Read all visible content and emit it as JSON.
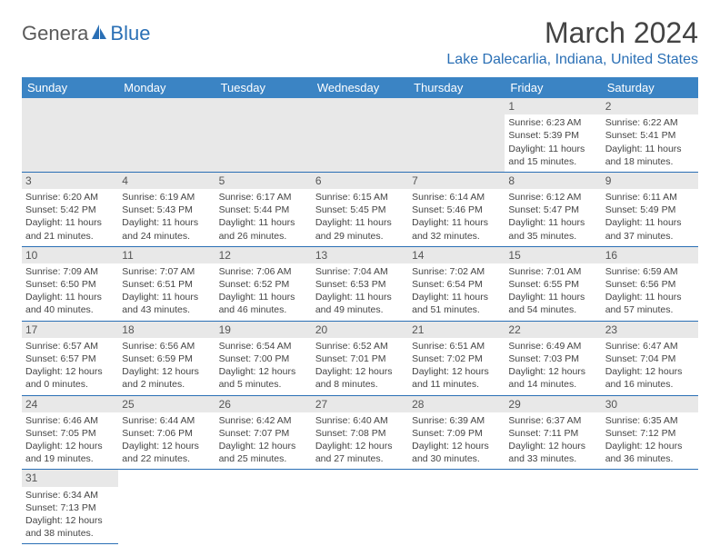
{
  "logo": {
    "text1": "Genera",
    "text2": "Blue"
  },
  "title": "March 2024",
  "location": "Lake Dalecarlia, Indiana, United States",
  "colors": {
    "header_bg": "#3b84c4",
    "accent": "#2a6fb5",
    "daynum_bg": "#e8e8e8",
    "text": "#444444"
  },
  "weekdays": [
    "Sunday",
    "Monday",
    "Tuesday",
    "Wednesday",
    "Thursday",
    "Friday",
    "Saturday"
  ],
  "first_weekday_index": 5,
  "days": [
    {
      "n": 1,
      "sunrise": "6:23 AM",
      "sunset": "5:39 PM",
      "daylight": "11 hours and 15 minutes."
    },
    {
      "n": 2,
      "sunrise": "6:22 AM",
      "sunset": "5:41 PM",
      "daylight": "11 hours and 18 minutes."
    },
    {
      "n": 3,
      "sunrise": "6:20 AM",
      "sunset": "5:42 PM",
      "daylight": "11 hours and 21 minutes."
    },
    {
      "n": 4,
      "sunrise": "6:19 AM",
      "sunset": "5:43 PM",
      "daylight": "11 hours and 24 minutes."
    },
    {
      "n": 5,
      "sunrise": "6:17 AM",
      "sunset": "5:44 PM",
      "daylight": "11 hours and 26 minutes."
    },
    {
      "n": 6,
      "sunrise": "6:15 AM",
      "sunset": "5:45 PM",
      "daylight": "11 hours and 29 minutes."
    },
    {
      "n": 7,
      "sunrise": "6:14 AM",
      "sunset": "5:46 PM",
      "daylight": "11 hours and 32 minutes."
    },
    {
      "n": 8,
      "sunrise": "6:12 AM",
      "sunset": "5:47 PM",
      "daylight": "11 hours and 35 minutes."
    },
    {
      "n": 9,
      "sunrise": "6:11 AM",
      "sunset": "5:49 PM",
      "daylight": "11 hours and 37 minutes."
    },
    {
      "n": 10,
      "sunrise": "7:09 AM",
      "sunset": "6:50 PM",
      "daylight": "11 hours and 40 minutes."
    },
    {
      "n": 11,
      "sunrise": "7:07 AM",
      "sunset": "6:51 PM",
      "daylight": "11 hours and 43 minutes."
    },
    {
      "n": 12,
      "sunrise": "7:06 AM",
      "sunset": "6:52 PM",
      "daylight": "11 hours and 46 minutes."
    },
    {
      "n": 13,
      "sunrise": "7:04 AM",
      "sunset": "6:53 PM",
      "daylight": "11 hours and 49 minutes."
    },
    {
      "n": 14,
      "sunrise": "7:02 AM",
      "sunset": "6:54 PM",
      "daylight": "11 hours and 51 minutes."
    },
    {
      "n": 15,
      "sunrise": "7:01 AM",
      "sunset": "6:55 PM",
      "daylight": "11 hours and 54 minutes."
    },
    {
      "n": 16,
      "sunrise": "6:59 AM",
      "sunset": "6:56 PM",
      "daylight": "11 hours and 57 minutes."
    },
    {
      "n": 17,
      "sunrise": "6:57 AM",
      "sunset": "6:57 PM",
      "daylight": "12 hours and 0 minutes."
    },
    {
      "n": 18,
      "sunrise": "6:56 AM",
      "sunset": "6:59 PM",
      "daylight": "12 hours and 2 minutes."
    },
    {
      "n": 19,
      "sunrise": "6:54 AM",
      "sunset": "7:00 PM",
      "daylight": "12 hours and 5 minutes."
    },
    {
      "n": 20,
      "sunrise": "6:52 AM",
      "sunset": "7:01 PM",
      "daylight": "12 hours and 8 minutes."
    },
    {
      "n": 21,
      "sunrise": "6:51 AM",
      "sunset": "7:02 PM",
      "daylight": "12 hours and 11 minutes."
    },
    {
      "n": 22,
      "sunrise": "6:49 AM",
      "sunset": "7:03 PM",
      "daylight": "12 hours and 14 minutes."
    },
    {
      "n": 23,
      "sunrise": "6:47 AM",
      "sunset": "7:04 PM",
      "daylight": "12 hours and 16 minutes."
    },
    {
      "n": 24,
      "sunrise": "6:46 AM",
      "sunset": "7:05 PM",
      "daylight": "12 hours and 19 minutes."
    },
    {
      "n": 25,
      "sunrise": "6:44 AM",
      "sunset": "7:06 PM",
      "daylight": "12 hours and 22 minutes."
    },
    {
      "n": 26,
      "sunrise": "6:42 AM",
      "sunset": "7:07 PM",
      "daylight": "12 hours and 25 minutes."
    },
    {
      "n": 27,
      "sunrise": "6:40 AM",
      "sunset": "7:08 PM",
      "daylight": "12 hours and 27 minutes."
    },
    {
      "n": 28,
      "sunrise": "6:39 AM",
      "sunset": "7:09 PM",
      "daylight": "12 hours and 30 minutes."
    },
    {
      "n": 29,
      "sunrise": "6:37 AM",
      "sunset": "7:11 PM",
      "daylight": "12 hours and 33 minutes."
    },
    {
      "n": 30,
      "sunrise": "6:35 AM",
      "sunset": "7:12 PM",
      "daylight": "12 hours and 36 minutes."
    },
    {
      "n": 31,
      "sunrise": "6:34 AM",
      "sunset": "7:13 PM",
      "daylight": "12 hours and 38 minutes."
    }
  ],
  "labels": {
    "sunrise": "Sunrise:",
    "sunset": "Sunset:",
    "daylight": "Daylight:"
  }
}
